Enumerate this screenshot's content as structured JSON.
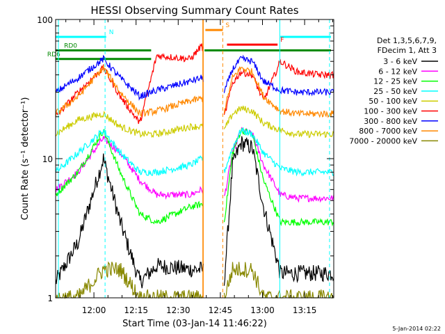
{
  "chart_data": {
    "type": "line",
    "title": "HESSI Observing Summary Count Rates",
    "xlabel": "Start Time (03-Jan-14 11:46:22)",
    "ylabel": "Count Rate (s⁻¹ detector⁻¹)",
    "yscale": "log",
    "ylim": [
      1,
      100
    ],
    "xlim_minutes": [
      0,
      99
    ],
    "x_tick_labels": [
      "12:00",
      "12:15",
      "12:30",
      "12:45",
      "13:00",
      "13:15"
    ],
    "x_tick_minutes": [
      13.633,
      28.633,
      43.633,
      58.633,
      73.633,
      88.633
    ],
    "y_tick_labels": [
      "1",
      "10",
      "100"
    ],
    "y_tick_values": [
      1,
      10,
      100
    ],
    "legend_header": [
      "Det 1,3,5,6,7,9,",
      "FDecim 1, Att 3"
    ],
    "legend_placement": "right",
    "footer_date": "5-Jan-2014 02:22",
    "flags": [
      {
        "label": "N",
        "color": "#00ffff",
        "value": 75,
        "segments": [
          [
            0,
            18
          ],
          [
            80,
            98
          ]
        ]
      },
      {
        "label": "S",
        "color": "#ff8800",
        "value": 84,
        "segments": [
          [
            53.3,
            59.5
          ]
        ]
      },
      {
        "label": "F",
        "color": "#ff0000",
        "value": 66,
        "segments": [
          [
            61,
            79
          ]
        ]
      },
      {
        "label": "RD0",
        "color": "#008800",
        "value": 60,
        "segments": [
          [
            0,
            34
          ],
          [
            53,
            98
          ]
        ]
      },
      {
        "label": "RD6",
        "color": "#008800",
        "value": 52,
        "segments": [
          [
            0,
            34
          ]
        ]
      }
    ],
    "gap": {
      "from_minutes": 52.5,
      "to_minutes": 60.0,
      "color": "#ff8800"
    },
    "vlines": [
      {
        "minute": 1,
        "color": "#00ffff",
        "style": "solid"
      },
      {
        "minute": 17.6,
        "color": "#00ffff",
        "style": "dashed"
      },
      {
        "minute": 52.4,
        "color": "#ff8800",
        "style": "solid"
      },
      {
        "minute": 59.5,
        "color": "#ff8800",
        "style": "dashed"
      },
      {
        "minute": 79.8,
        "color": "#00ffff",
        "style": "solid"
      },
      {
        "minute": 97.5,
        "color": "#00ffff",
        "style": "dashed"
      }
    ],
    "series": [
      {
        "name": "3 - 6 keV",
        "color": "#000000",
        "x": [
          0,
          8,
          17,
          23,
          30,
          36,
          48,
          52,
          60,
          63,
          66,
          70,
          74,
          80,
          86,
          94,
          99
        ],
        "y": [
          1.3,
          2.5,
          10,
          3.5,
          1.3,
          1.7,
          1.6,
          1.6,
          1.3,
          9,
          13,
          12,
          4.5,
          1.5,
          1.5,
          1.5,
          1.5
        ]
      },
      {
        "name": "6 - 12 keV",
        "color": "#ff00ff",
        "x": [
          0,
          8,
          17,
          23,
          30,
          36,
          48,
          52,
          60,
          63,
          66,
          70,
          74,
          80,
          86,
          94,
          99
        ],
        "y": [
          6,
          8,
          14,
          11,
          7,
          5.5,
          5.5,
          6,
          5.2,
          11,
          16,
          15,
          9,
          5.5,
          5.2,
          5.2,
          5.2
        ]
      },
      {
        "name": "12 - 25 keV",
        "color": "#00ff00",
        "x": [
          0,
          8,
          17,
          23,
          30,
          36,
          48,
          52,
          60,
          63,
          66,
          70,
          74,
          80,
          86,
          94,
          99
        ],
        "y": [
          5.5,
          8,
          16,
          8,
          4,
          3.5,
          4.5,
          4.7,
          3.5,
          11,
          16,
          15,
          7,
          3.5,
          3.5,
          3.5,
          3.5
        ]
      },
      {
        "name": "25 - 50 keV",
        "color": "#00ffff",
        "x": [
          0,
          8,
          17,
          23,
          30,
          36,
          48,
          52,
          60,
          63,
          66,
          70,
          74,
          80,
          86,
          94,
          99
        ],
        "y": [
          8,
          11,
          16,
          11,
          8,
          8,
          9,
          10,
          8,
          12,
          16,
          15,
          11,
          8.5,
          8,
          8,
          8
        ]
      },
      {
        "name": "50 - 100 keV",
        "color": "#cccc00",
        "x": [
          0,
          8,
          17,
          23,
          30,
          36,
          48,
          52,
          60,
          63,
          66,
          70,
          74,
          80,
          86,
          94,
          99
        ],
        "y": [
          15,
          19,
          21,
          17,
          15,
          15,
          17,
          17,
          16,
          21,
          23,
          22,
          18,
          16,
          15,
          15,
          15
        ]
      },
      {
        "name": "100 - 300 keV",
        "color": "#ff0000",
        "x": [
          0,
          8,
          17,
          23,
          30,
          36,
          48,
          52,
          60,
          63,
          66,
          70,
          74,
          80,
          86,
          94,
          99
        ],
        "y": [
          20,
          30,
          45,
          28,
          18,
          55,
          52,
          65,
          20,
          35,
          42,
          40,
          26,
          50,
          42,
          40,
          40
        ]
      },
      {
        "name": "300 - 800 keV",
        "color": "#0000ff",
        "x": [
          0,
          8,
          17,
          23,
          30,
          36,
          48,
          52,
          60,
          63,
          66,
          70,
          74,
          80,
          86,
          94,
          99
        ],
        "y": [
          30,
          38,
          52,
          38,
          28,
          31,
          36,
          38,
          30,
          44,
          52,
          50,
          36,
          31,
          30,
          30,
          30
        ]
      },
      {
        "name": "800 - 7000 keV",
        "color": "#ff8800",
        "x": [
          0,
          8,
          17,
          23,
          30,
          36,
          48,
          52,
          60,
          63,
          66,
          70,
          74,
          80,
          86,
          94,
          99
        ],
        "y": [
          21,
          28,
          45,
          30,
          21,
          22,
          26,
          27,
          22,
          38,
          45,
          42,
          28,
          22,
          21,
          21,
          21
        ]
      },
      {
        "name": "7000 - 20000 keV",
        "color": "#888800",
        "x": [
          0,
          8,
          17,
          23,
          30,
          36,
          48,
          52,
          60,
          63,
          66,
          70,
          74,
          80,
          86,
          94,
          99
        ],
        "y": [
          1,
          1,
          1.6,
          1.6,
          1,
          1,
          1,
          1,
          1,
          1.6,
          1.6,
          1.6,
          1,
          1,
          1,
          1,
          1
        ]
      }
    ]
  }
}
